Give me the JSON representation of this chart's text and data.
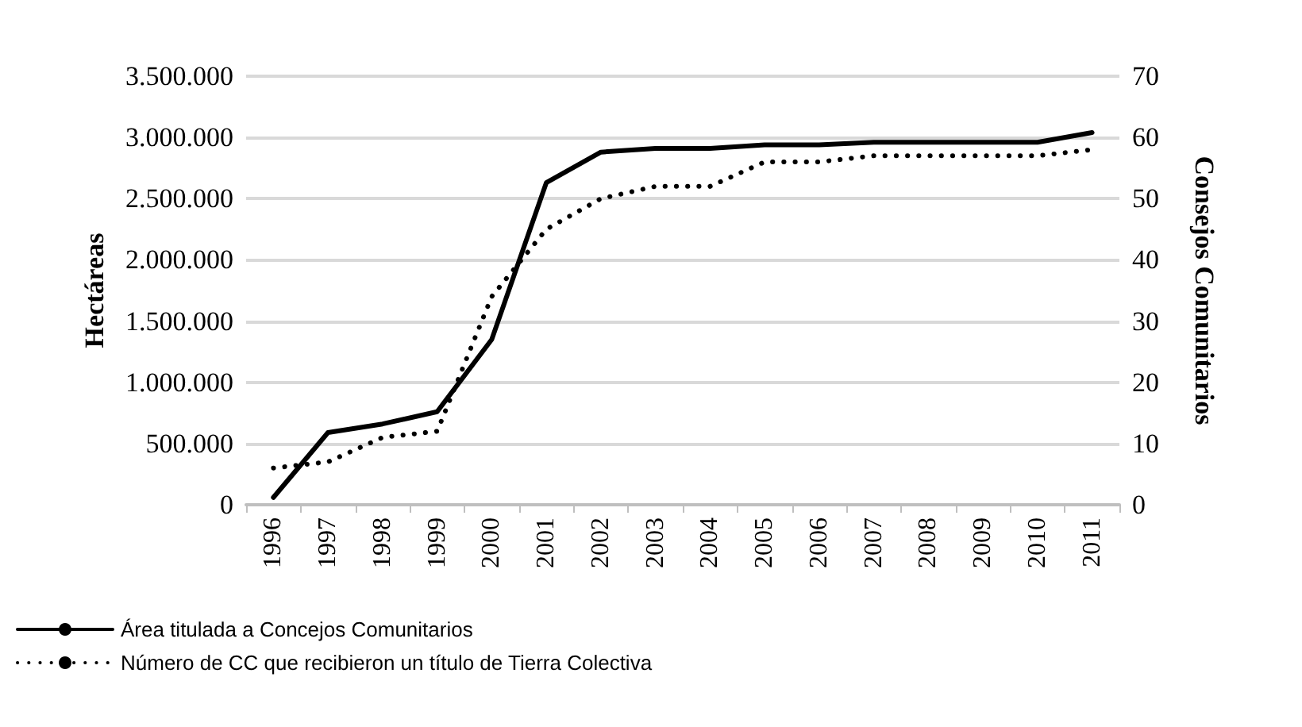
{
  "chart_data": {
    "type": "line",
    "categories": [
      "1996",
      "1997",
      "1998",
      "1999",
      "2000",
      "2001",
      "2002",
      "2003",
      "2004",
      "2005",
      "2006",
      "2007",
      "2008",
      "2009",
      "2010",
      "2011"
    ],
    "series": [
      {
        "name": "Área titulada a Concejos Comunitarios",
        "color": "#000000",
        "line_style": "solid",
        "values": [
          60000,
          590000,
          660000,
          760000,
          1350000,
          2630000,
          2880000,
          2910000,
          2910000,
          2940000,
          2940000,
          2960000,
          2960000,
          2960000,
          2960000,
          3040000
        ]
      },
      {
        "name": "Número de CC que recibieron un título de Tierra Colectiva",
        "color": "#000000",
        "line_style": "dotted",
        "axis": "y2",
        "values": [
          6,
          7,
          11,
          12,
          34,
          45,
          50,
          52,
          52,
          56,
          56,
          57,
          57,
          57,
          57,
          58
        ]
      }
    ],
    "ylabel": "Hectáreas",
    "y2label": "Consejos Comunitarios",
    "ylim": [
      0,
      3500000
    ],
    "yticks": [
      {
        "value": 0,
        "label": "0"
      },
      {
        "value": 500000,
        "label": "500.000"
      },
      {
        "value": 1000000,
        "label": "1.000.000"
      },
      {
        "value": 1500000,
        "label": "1.500.000"
      },
      {
        "value": 2000000,
        "label": "2.000.000"
      },
      {
        "value": 2500000,
        "label": "2.500.000"
      },
      {
        "value": 3000000,
        "label": "3.000.000"
      },
      {
        "value": 3500000,
        "label": "3.500.000"
      }
    ],
    "y2lim": [
      0,
      70
    ],
    "y2ticks": [
      0,
      10,
      20,
      30,
      40,
      50,
      60,
      70
    ],
    "grid": "y",
    "legend": "bottom left",
    "marker": "none"
  }
}
